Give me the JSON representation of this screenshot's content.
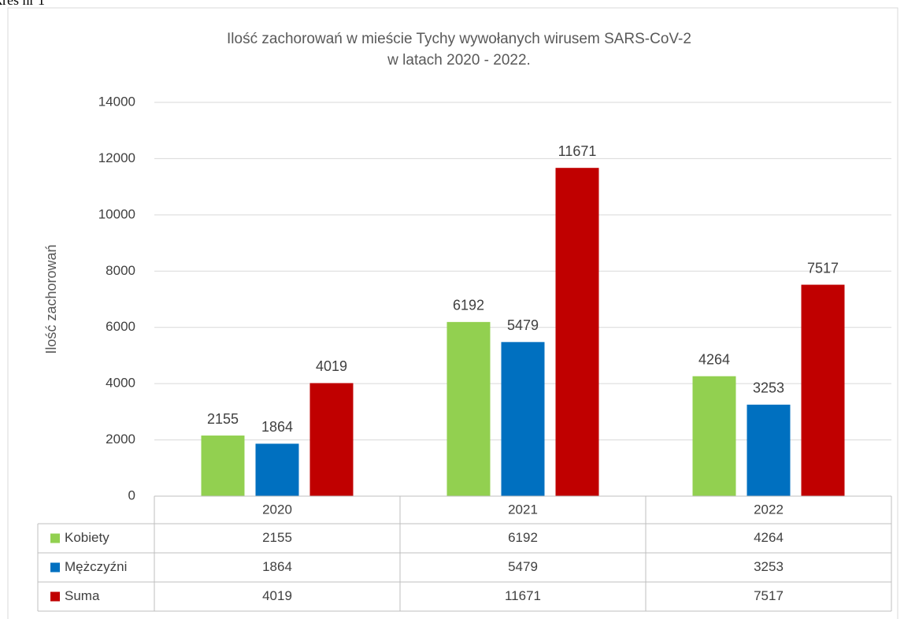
{
  "caption": "kres nr 1",
  "chart_data": {
    "type": "bar",
    "title": [
      "Ilość zachorowań w mieście Tychy wywołanych wirusem SARS-CoV-2",
      "w latach 2020 - 2022."
    ],
    "y_label": "Ilość zachorowań",
    "categories": [
      "2020",
      "2021",
      "2022"
    ],
    "series": [
      {
        "name": "Kobiety",
        "color": "#92d050",
        "values": [
          2155,
          6192,
          4264
        ]
      },
      {
        "name": "Mężczyźni",
        "color": "#0070c0",
        "values": [
          1864,
          5479,
          3253
        ]
      },
      {
        "name": "Suma",
        "color": "#c00000",
        "values": [
          4019,
          11671,
          7517
        ]
      }
    ],
    "ylim": [
      0,
      14000
    ],
    "yticks": [
      0,
      2000,
      4000,
      6000,
      8000,
      10000,
      12000,
      14000
    ],
    "grid": true,
    "data_table": true
  }
}
